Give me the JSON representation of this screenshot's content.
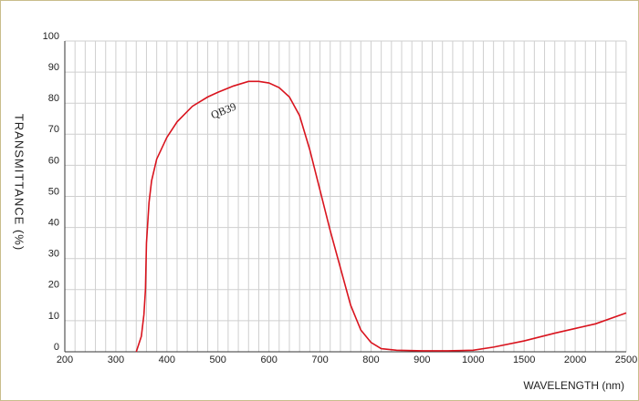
{
  "chart_data": {
    "type": "line",
    "x_label": "WAVELENGTH (nm)",
    "y_label": "TRANSMITTANCE (%)",
    "x": [
      340,
      350,
      355,
      358,
      360,
      365,
      370,
      380,
      400,
      420,
      450,
      480,
      500,
      530,
      560,
      580,
      600,
      620,
      640,
      660,
      680,
      700,
      720,
      740,
      760,
      780,
      800,
      820,
      850,
      900,
      950,
      1000,
      1200,
      1500,
      1800,
      2000,
      2200,
      2500
    ],
    "series": [
      {
        "name": "QB39",
        "color": "#d9141e",
        "values": [
          0,
          5,
          12,
          20,
          35,
          48,
          55,
          62,
          69,
          74,
          79,
          82,
          83.5,
          85.5,
          87,
          87,
          86.5,
          85,
          82,
          76,
          65,
          52,
          39,
          27,
          15,
          7,
          3,
          1,
          0.5,
          0.3,
          0.3,
          0.5,
          1.5,
          3.5,
          6,
          7.5,
          9,
          12.5
        ]
      }
    ],
    "xlim": [
      200,
      2500
    ],
    "xticks": [
      200,
      300,
      400,
      500,
      600,
      700,
      800,
      900,
      1000,
      1500,
      2000,
      2500
    ],
    "ylim": [
      0,
      100
    ],
    "yticks": [
      0,
      10,
      20,
      30,
      40,
      50,
      60,
      70,
      80,
      90,
      100
    ],
    "grid": true
  }
}
